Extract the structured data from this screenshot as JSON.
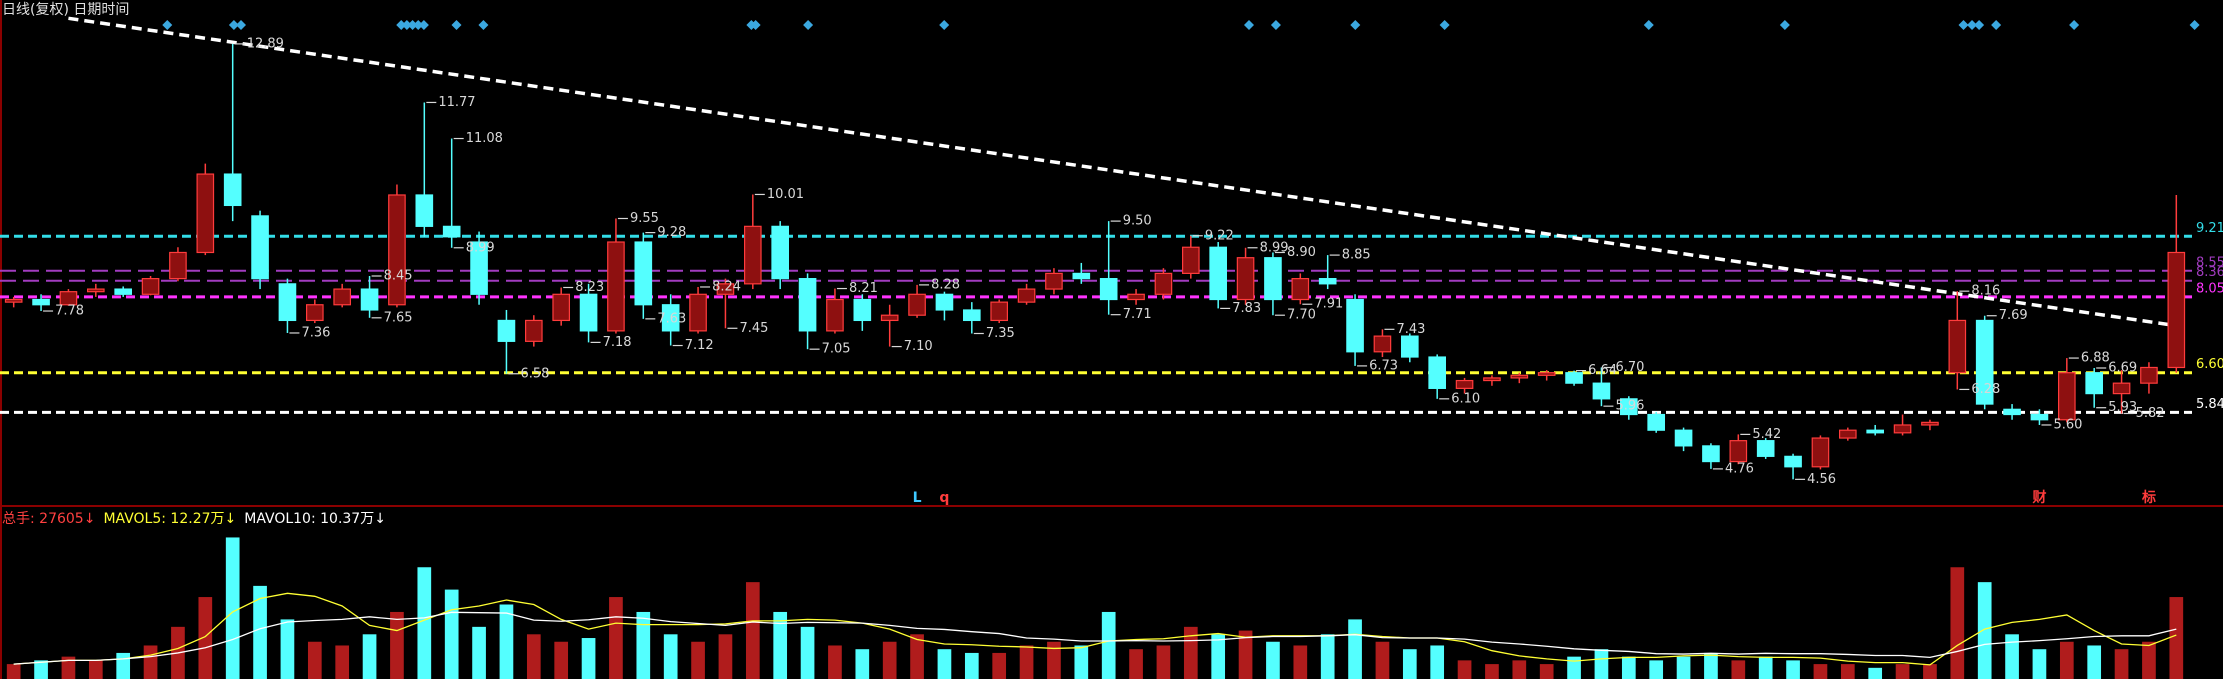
{
  "chart_data": {
    "type": "candlestick",
    "title": "日线(复权) 日期时间",
    "categories": [
      null,
      null,
      null,
      null,
      null,
      null,
      null,
      null,
      null,
      null,
      null,
      null,
      null,
      null,
      null,
      null,
      null,
      null,
      null,
      null,
      null,
      null,
      null,
      null,
      null,
      null,
      null,
      null,
      null,
      null,
      null,
      null,
      null,
      null,
      null,
      null,
      null,
      null,
      null,
      null,
      null,
      null,
      null,
      null,
      null,
      null,
      null,
      null,
      null,
      null,
      null,
      null,
      null,
      null,
      null,
      null,
      null,
      null,
      null,
      null,
      null,
      null,
      null,
      null,
      null,
      null,
      null,
      null,
      null,
      null,
      null,
      null,
      null,
      null,
      null,
      null,
      null,
      null,
      null,
      null
    ],
    "open": [
      7.95,
      8.0,
      7.9,
      8.15,
      8.2,
      8.1,
      8.4,
      8.9,
      10.4,
      9.6,
      8.3,
      7.6,
      7.9,
      8.2,
      7.9,
      10.0,
      9.4,
      9.1,
      7.6,
      7.2,
      7.6,
      8.1,
      7.4,
      9.1,
      7.9,
      7.4,
      8.1,
      8.3,
      9.4,
      8.4,
      7.4,
      8.0,
      7.6,
      7.7,
      8.1,
      7.8,
      7.6,
      7.95,
      8.2,
      8.5,
      8.4,
      8.0,
      8.1,
      8.5,
      9.0,
      8.0,
      8.8,
      8.0,
      8.4,
      8.0,
      7.0,
      7.3,
      6.9,
      6.3,
      6.45,
      6.5,
      6.55,
      6.6,
      6.4,
      6.1,
      5.8,
      5.5,
      5.2,
      4.9,
      5.3,
      5.0,
      4.8,
      5.35,
      5.5,
      5.45,
      5.6,
      6.6,
      7.6,
      5.9,
      5.8,
      5.7,
      6.6,
      6.2,
      6.4,
      6.7
    ],
    "high": [
      8.05,
      8.1,
      8.2,
      8.3,
      8.25,
      8.45,
      9.0,
      10.6,
      12.89,
      9.7,
      8.4,
      8.0,
      8.3,
      8.45,
      10.2,
      11.77,
      11.08,
      9.3,
      7.8,
      7.7,
      8.23,
      8.3,
      9.55,
      9.28,
      8.1,
      8.24,
      8.4,
      10.01,
      9.5,
      8.5,
      8.21,
      8.1,
      7.9,
      8.28,
      8.15,
      7.95,
      8.0,
      8.3,
      8.6,
      8.7,
      9.5,
      8.2,
      8.6,
      9.22,
      9.1,
      8.99,
      8.9,
      8.5,
      8.85,
      8.1,
      7.43,
      7.35,
      6.95,
      6.5,
      6.55,
      6.6,
      6.65,
      6.64,
      6.7,
      6.15,
      5.85,
      5.55,
      5.25,
      5.42,
      5.35,
      5.05,
      5.4,
      5.55,
      5.6,
      5.8,
      5.7,
      8.16,
      7.69,
      6.0,
      5.9,
      6.88,
      6.69,
      6.65,
      6.8,
      10.0
    ],
    "low": [
      7.85,
      7.78,
      7.88,
      8.05,
      8.05,
      8.08,
      8.35,
      8.85,
      9.5,
      8.2,
      7.36,
      7.55,
      7.85,
      7.65,
      7.85,
      9.2,
      8.99,
      7.9,
      6.58,
      7.1,
      7.5,
      7.18,
      7.35,
      7.63,
      7.12,
      7.35,
      7.45,
      8.2,
      8.2,
      7.05,
      7.35,
      7.4,
      7.1,
      7.65,
      7.6,
      7.35,
      7.55,
      7.9,
      8.1,
      8.3,
      7.71,
      7.9,
      8.0,
      8.4,
      7.83,
      7.9,
      7.7,
      7.91,
      8.2,
      6.73,
      6.9,
      6.8,
      6.1,
      6.2,
      6.35,
      6.4,
      6.45,
      6.35,
      5.96,
      5.7,
      5.45,
      5.1,
      4.76,
      4.85,
      4.95,
      4.56,
      4.75,
      5.3,
      5.4,
      5.4,
      5.5,
      6.28,
      5.9,
      5.7,
      5.6,
      5.65,
      5.93,
      5.82,
      6.2,
      6.6
    ],
    "close": [
      8.0,
      7.9,
      8.15,
      8.2,
      8.1,
      8.4,
      8.9,
      10.4,
      9.8,
      8.4,
      7.6,
      7.9,
      8.2,
      7.8,
      10.0,
      9.4,
      9.2,
      8.1,
      7.2,
      7.6,
      8.1,
      7.4,
      9.1,
      7.9,
      7.4,
      8.1,
      8.3,
      9.4,
      8.4,
      7.4,
      8.0,
      7.6,
      7.7,
      8.1,
      7.8,
      7.6,
      7.95,
      8.2,
      8.5,
      8.4,
      8.0,
      8.1,
      8.5,
      9.0,
      8.0,
      8.8,
      8.0,
      8.4,
      8.3,
      7.0,
      7.3,
      6.9,
      6.3,
      6.45,
      6.5,
      6.55,
      6.6,
      6.4,
      6.1,
      5.8,
      5.5,
      5.2,
      4.9,
      5.3,
      5.0,
      4.8,
      5.35,
      5.5,
      5.45,
      5.6,
      5.65,
      7.6,
      6.0,
      5.8,
      5.7,
      6.6,
      6.2,
      6.4,
      6.7,
      8.9
    ],
    "up_color": "#ff3c3c",
    "down_color": "#54ffff",
    "ylim": [
      4.05,
      13.73
    ],
    "annotations": [
      {
        "index": 1,
        "value": 7.78
      },
      {
        "index": 8,
        "value": 12.89
      },
      {
        "index": 10,
        "value": 7.36
      },
      {
        "index": 13,
        "value": 8.45
      },
      {
        "index": 13,
        "value": 7.65
      },
      {
        "index": 15,
        "value": 11.77
      },
      {
        "index": 16,
        "value": 11.08
      },
      {
        "index": 16,
        "value": 8.99
      },
      {
        "index": 18,
        "value": 6.58
      },
      {
        "index": 20,
        "value": 8.23
      },
      {
        "index": 21,
        "value": 7.18
      },
      {
        "index": 22,
        "value": 9.55
      },
      {
        "index": 23,
        "value": 9.28
      },
      {
        "index": 23,
        "value": 7.63
      },
      {
        "index": 24,
        "value": 7.12
      },
      {
        "index": 25,
        "value": 8.24
      },
      {
        "index": 26,
        "value": 7.45
      },
      {
        "index": 27,
        "value": 10.01
      },
      {
        "index": 29,
        "value": 7.05
      },
      {
        "index": 30,
        "value": 8.21
      },
      {
        "index": 32,
        "value": 7.1,
        "label": "7.10"
      },
      {
        "index": 33,
        "value": 8.28
      },
      {
        "index": 35,
        "value": 7.35
      },
      {
        "index": 40,
        "value": 9.5,
        "label": "9.50"
      },
      {
        "index": 40,
        "value": 7.71
      },
      {
        "index": 43,
        "value": 9.22
      },
      {
        "index": 44,
        "value": 7.83
      },
      {
        "index": 45,
        "value": 8.99
      },
      {
        "index": 46,
        "value": 8.9,
        "label": "8.90"
      },
      {
        "index": 46,
        "value": 7.7,
        "label": "7.70"
      },
      {
        "index": 47,
        "value": 7.91
      },
      {
        "index": 48,
        "value": 8.85
      },
      {
        "index": 49,
        "value": 6.73
      },
      {
        "index": 50,
        "value": 7.43
      },
      {
        "index": 52,
        "value": 6.1,
        "label": "6.10"
      },
      {
        "index": 57,
        "value": 6.64
      },
      {
        "index": 58,
        "value": 6.7,
        "label": "6.70"
      },
      {
        "index": 58,
        "value": 5.96
      },
      {
        "index": 62,
        "value": 4.76
      },
      {
        "index": 63,
        "value": 5.42
      },
      {
        "index": 65,
        "value": 4.56
      },
      {
        "index": 71,
        "value": 8.16
      },
      {
        "index": 71,
        "value": 6.28
      },
      {
        "index": 72,
        "value": 7.69
      },
      {
        "index": 74,
        "value": 5.6,
        "label": "5.60"
      },
      {
        "index": 75,
        "value": 6.88
      },
      {
        "index": 76,
        "value": 6.69
      },
      {
        "index": 76,
        "value": 5.93
      },
      {
        "index": 77,
        "value": 5.82
      }
    ],
    "hlines": [
      {
        "value": 9.21,
        "color": "#33dde8",
        "weight": "thick"
      },
      {
        "value": 8.55,
        "color": "#a23cc0",
        "weight": "thin"
      },
      {
        "value": 8.36,
        "color": "#a23cc0",
        "weight": "thin"
      },
      {
        "value": 8.05,
        "color": "#ff33ff",
        "weight": "thick"
      },
      {
        "value": 6.6,
        "label": "6.60",
        "color": "#ffff33",
        "weight": "thick"
      },
      {
        "value": 5.84,
        "color": "#ffffff",
        "weight": "thick"
      }
    ],
    "trendline": {
      "indices": [
        2,
        79
      ],
      "values": [
        13.38,
        7.5
      ],
      "color": "#ffffff"
    },
    "signals": [
      {
        "index": 33,
        "text": "L",
        "color": "#3ec8ff"
      },
      {
        "index": 34,
        "text": "q",
        "color": "#ff3c3c"
      },
      {
        "index": 74,
        "text": "财",
        "color": "#ff3c3c"
      },
      {
        "index": 78,
        "text": "标",
        "color": "#ff3c3c"
      }
    ],
    "volume": {
      "header": [
        {
          "text": "总手: 27605↓",
          "color": "#ff4040"
        },
        {
          "text": "MAVOL5: 12.27万↓",
          "color": "#ffff33"
        },
        {
          "text": "MAVOL10: 10.37万↓",
          "color": "#ffffff"
        }
      ],
      "values": [
        4,
        5,
        6,
        5,
        7,
        9,
        14,
        22,
        38,
        25,
        16,
        10,
        9,
        12,
        18,
        30,
        24,
        14,
        20,
        12,
        10,
        11,
        22,
        18,
        12,
        10,
        12,
        26,
        18,
        14,
        9,
        8,
        10,
        12,
        8,
        7,
        7,
        9,
        10,
        9,
        18,
        8,
        9,
        14,
        12,
        13,
        10,
        9,
        12,
        16,
        10,
        8,
        9,
        5,
        4,
        5,
        4,
        6,
        8,
        6,
        5,
        6,
        7,
        5,
        6,
        5,
        4,
        4,
        3,
        4,
        4,
        30,
        26,
        12,
        8,
        10,
        9,
        8,
        10,
        22
      ],
      "ylim": [
        0,
        40
      ],
      "series": [
        {
          "color": "#ffff33",
          "values": [
            4,
            4.5,
            5,
            5,
            5.4,
            6.4,
            8.2,
            11.4,
            18,
            21.6,
            23,
            22.2,
            19.6,
            14.4,
            13,
            15.8,
            18.6,
            19.6,
            21.2,
            20,
            16,
            13.4,
            15,
            14.6,
            14.6,
            14.6,
            14.8,
            15.6,
            15.6,
            16,
            15.8,
            15,
            13.4,
            10.6,
            9.4,
            9.2,
            8.8,
            8.6,
            8.2,
            8.4,
            10.2,
            10.6,
            10.8,
            11.6,
            12.2,
            11.2,
            11.6,
            11.6,
            11.6,
            12,
            11.4,
            11,
            11,
            10,
            7.6,
            6.2,
            5.4,
            4.8,
            5.4,
            5.8,
            5.8,
            6.2,
            6.4,
            6,
            5.8,
            5.8,
            5.6,
            4.8,
            4.4,
            4.4,
            3.8,
            9,
            13.4,
            15.2,
            16,
            17.2,
            13,
            9.4,
            9,
            11.8
          ]
        },
        {
          "color": "#ffffff",
          "values": [
            4,
            4.5,
            5,
            5,
            5.4,
            6,
            7,
            8.4,
            10.6,
            13.5,
            15.3,
            15.7,
            16,
            16.7,
            16,
            16.4,
            17.9,
            17.8,
            17.7,
            15.8,
            15.5,
            15.9,
            16.7,
            16.3,
            15.4,
            14.9,
            14.4,
            15.3,
            14.9,
            15.2,
            15.1,
            15,
            14.4,
            13.6,
            13.3,
            12.7,
            12.2,
            11,
            10.7,
            10.2,
            10.2,
            10.3,
            10.2,
            10.3,
            10.5,
            11.1,
            11.4,
            11.4,
            11.6,
            11.9,
            11.1,
            11,
            11,
            10.7,
            9.9,
            9.4,
            8.8,
            8.1,
            7.7,
            7.4,
            6.8,
            6.7,
            6.9,
            6.7,
            6.9,
            6.8,
            6.8,
            6.6,
            6.3,
            6.3,
            5.8,
            7.4,
            9.3,
            9.9,
            10.3,
            10.8,
            11.4,
            11.6,
            11.6,
            13.4
          ]
        }
      ]
    }
  }
}
